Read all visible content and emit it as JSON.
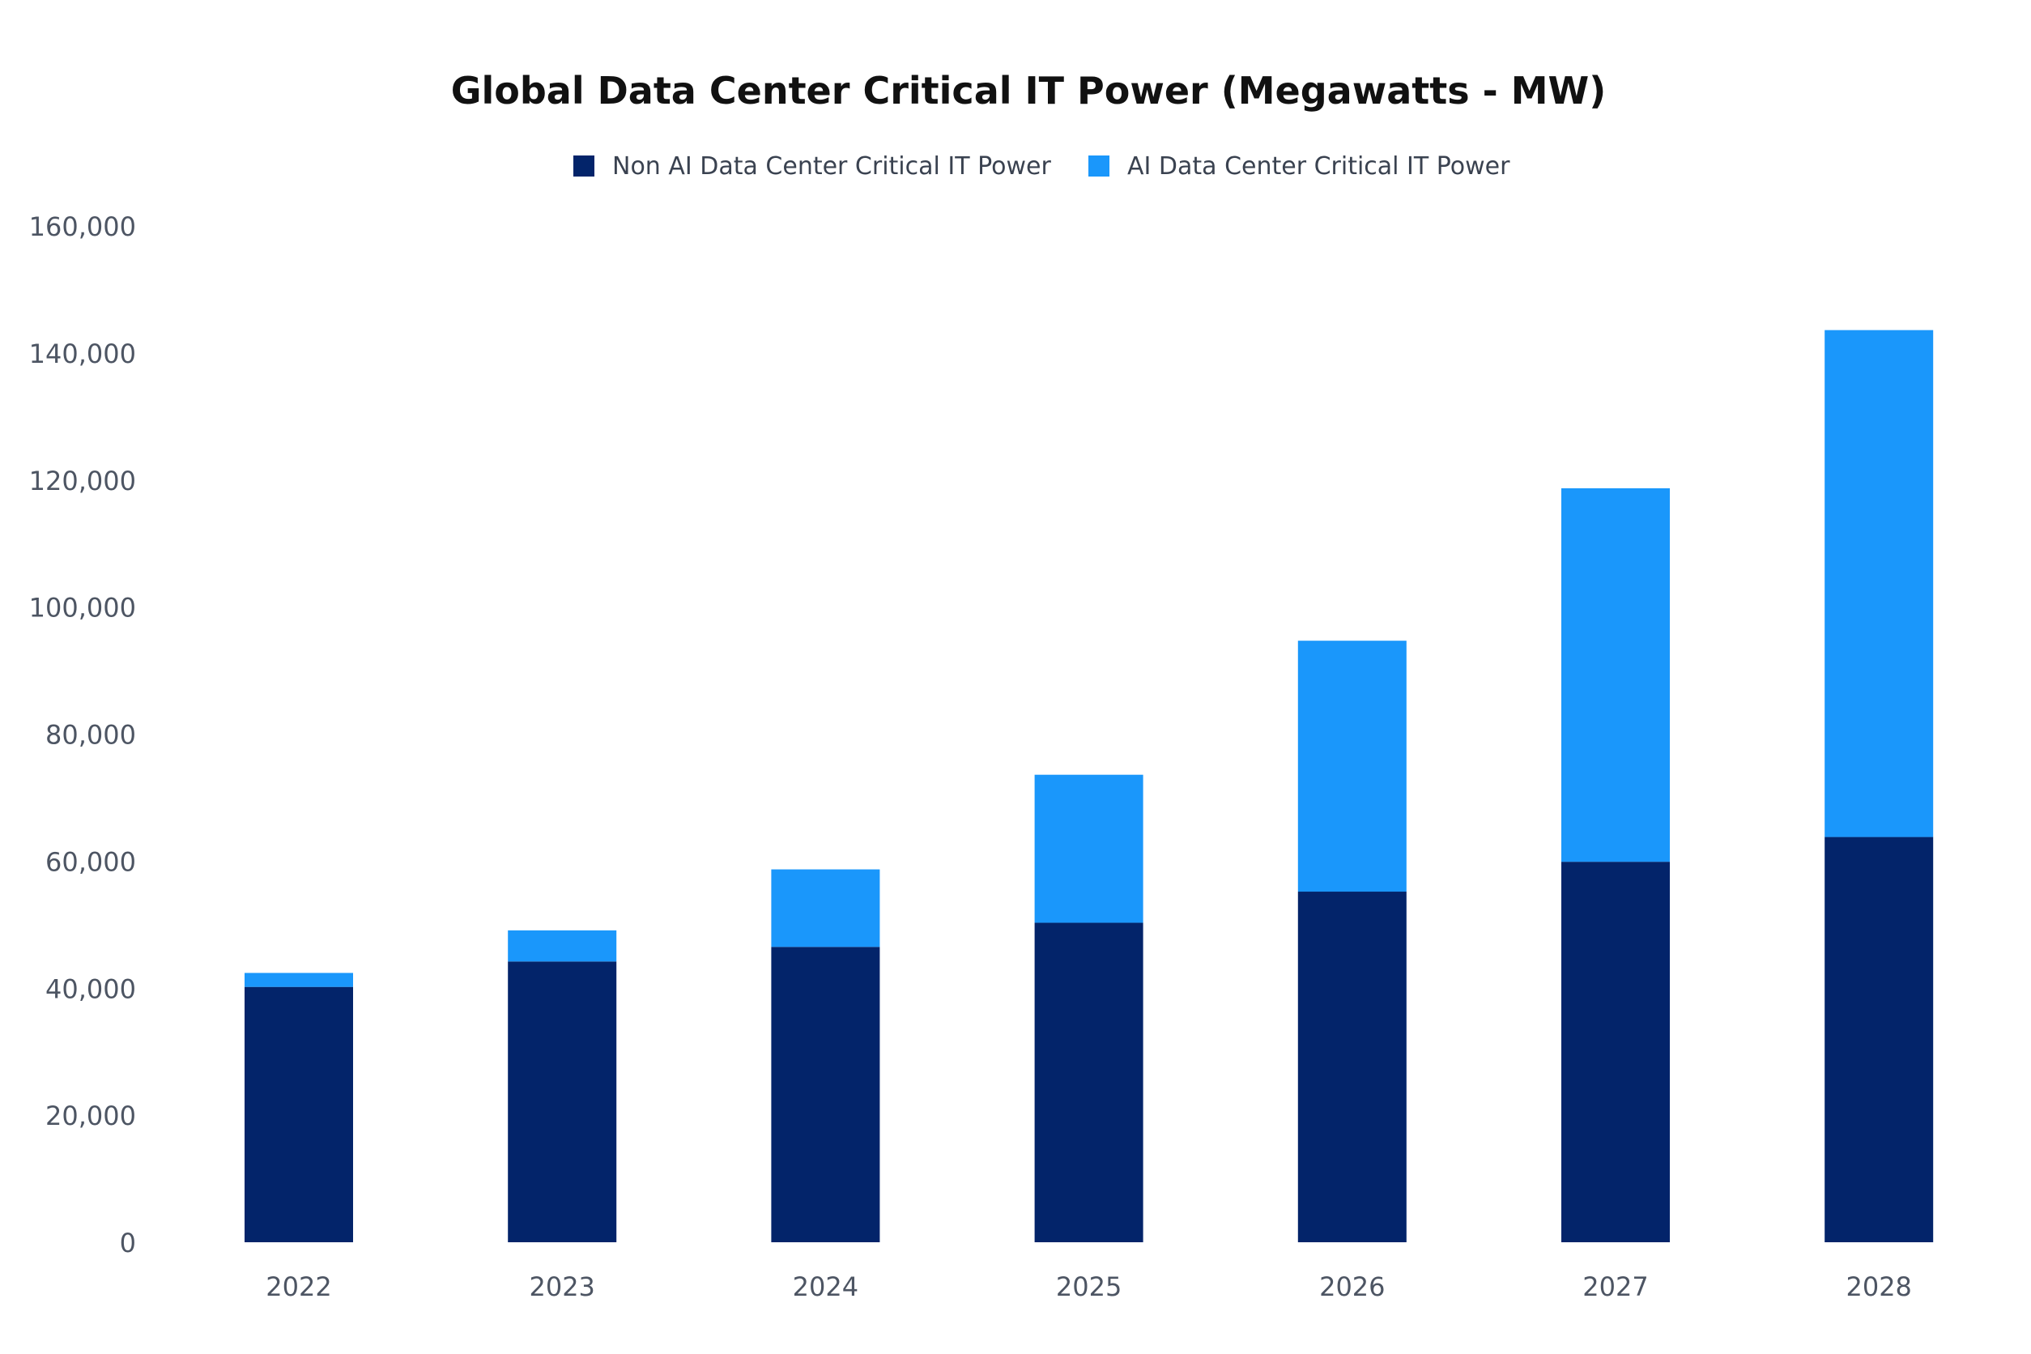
{
  "chart_data": {
    "type": "bar",
    "stacked": true,
    "title": "Global Data Center Critical IT Power (Megawatts - MW)",
    "xlabel": "",
    "ylabel": "",
    "categories": [
      "2022",
      "2023",
      "2024",
      "2025",
      "2026",
      "2027",
      "2028"
    ],
    "series": [
      {
        "name": "Non AI Data Center Critical IT Power",
        "color": "#03246a",
        "values": [
          40200,
          44200,
          46500,
          50300,
          55200,
          59900,
          63800
        ]
      },
      {
        "name": "AI Data Center Critical IT Power",
        "color": "#1a97fb",
        "values": [
          2200,
          4900,
          12200,
          23300,
          39500,
          58800,
          79800
        ]
      }
    ],
    "ylim": [
      0,
      160000
    ],
    "yticks": [
      0,
      20000,
      40000,
      60000,
      80000,
      100000,
      120000,
      140000,
      160000
    ],
    "ytick_labels": [
      "0",
      "20,000",
      "40,000",
      "60,000",
      "80,000",
      "100,000",
      "120,000",
      "140,000",
      "160,000"
    ],
    "grid": false,
    "legend_position": "top-center"
  }
}
